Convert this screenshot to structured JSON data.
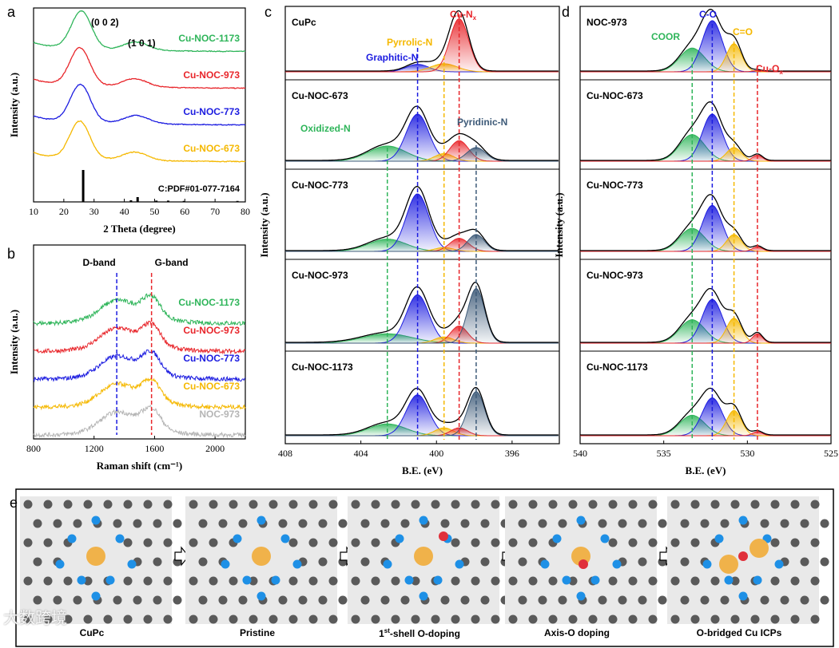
{
  "panel_labels": [
    "a",
    "b",
    "c",
    "d",
    "e"
  ],
  "colors": {
    "green": "#2fb55a",
    "red": "#e8262b",
    "blue": "#1c1ce0",
    "gold": "#f5b800",
    "gray": "#b5b5b5",
    "slate": "#3d5a78",
    "black": "#000000"
  },
  "chart_data": [
    {
      "id": "a",
      "type": "line",
      "xlabel": "2 Theta (degree)",
      "ylabel": "Intensity (a.u.)",
      "xlim": [
        10,
        80
      ],
      "xticks": [
        10,
        20,
        30,
        40,
        50,
        60,
        70,
        80
      ],
      "annotations": [
        "(0 0 2)",
        "(1 0 1)"
      ],
      "reference_label": "C:PDF#01-077-7164",
      "reference_peaks": [
        {
          "x": 26.4,
          "h": 1.0
        },
        {
          "x": 42.2,
          "h": 0.05
        },
        {
          "x": 44.4,
          "h": 0.15
        },
        {
          "x": 50.6,
          "h": 0.04
        },
        {
          "x": 54.5,
          "h": 0.04
        },
        {
          "x": 59.7,
          "h": 0.03
        },
        {
          "x": 77.4,
          "h": 0.03
        }
      ],
      "series": [
        {
          "name": "Cu-NOC-1173",
          "color": "green",
          "offset": 3,
          "peaks": [
            25.8,
            43.8
          ]
        },
        {
          "name": "Cu-NOC-973",
          "color": "red",
          "offset": 2,
          "peaks": [
            25.3,
            43.5
          ]
        },
        {
          "name": "Cu-NOC-773",
          "color": "blue",
          "offset": 1,
          "peaks": [
            25.5,
            44.0
          ]
        },
        {
          "name": "Cu-NOC-673",
          "color": "gold",
          "offset": 0,
          "peaks": [
            25.3,
            43.5
          ]
        }
      ]
    },
    {
      "id": "b",
      "type": "line",
      "xlabel": "Raman shift (cm⁻¹)",
      "ylabel": "Intensity (a.u.)",
      "xlim": [
        800,
        2200
      ],
      "xticks": [
        800,
        1200,
        1600,
        2000
      ],
      "bands": [
        {
          "name": "D-band",
          "x": 1350,
          "color": "blue"
        },
        {
          "name": "G-band",
          "x": 1580,
          "color": "red"
        }
      ],
      "series": [
        {
          "name": "Cu-NOC-1173",
          "color": "green",
          "offset": 4
        },
        {
          "name": "Cu-NOC-973",
          "color": "red",
          "offset": 3
        },
        {
          "name": "Cu-NOC-773",
          "color": "blue",
          "offset": 2
        },
        {
          "name": "Cu-NOC-673",
          "color": "gold",
          "offset": 1
        },
        {
          "name": "NOC-973",
          "color": "gray",
          "offset": 0
        }
      ]
    },
    {
      "id": "c",
      "type": "area",
      "xlabel": "B.E. (eV)",
      "ylabel": "Intensity (a.u.)",
      "xlim": [
        408,
        393.5
      ],
      "xticks": [
        408,
        404,
        400,
        396
      ],
      "components": [
        {
          "name": "Oxidized-N",
          "center": 402.6,
          "color": "green"
        },
        {
          "name": "Graphitic-N",
          "center": 401.0,
          "color": "blue"
        },
        {
          "name": "Pyrrolic-N",
          "center": 399.6,
          "color": "gold"
        },
        {
          "name": "Cu-N",
          "sub": "x",
          "center": 398.8,
          "color": "red"
        },
        {
          "name": "Pyridinic-N",
          "center": 397.9,
          "color": "slate"
        }
      ],
      "samples": [
        {
          "name": "CuPc",
          "amps": [
            0,
            0.12,
            0.13,
            0.85,
            0
          ],
          "sigmas": [
            1,
            0.6,
            0.7,
            0.5,
            0.5
          ]
        },
        {
          "name": "Cu-NOC-673",
          "amps": [
            0.2,
            0.62,
            0.1,
            0.27,
            0.18
          ],
          "sigmas": [
            1,
            0.6,
            0.5,
            0.5,
            0.5
          ]
        },
        {
          "name": "Cu-NOC-773",
          "amps": [
            0.16,
            0.75,
            0.05,
            0.17,
            0.22
          ],
          "sigmas": [
            1,
            0.6,
            0.5,
            0.5,
            0.45
          ]
        },
        {
          "name": "Cu-NOC-973",
          "amps": [
            0.12,
            0.62,
            0.08,
            0.22,
            0.7
          ],
          "sigmas": [
            1.3,
            0.6,
            0.5,
            0.45,
            0.45
          ]
        },
        {
          "name": "Cu-NOC-1173",
          "amps": [
            0.15,
            0.52,
            0.1,
            0.1,
            0.56
          ],
          "sigmas": [
            1.0,
            0.6,
            0.5,
            0.45,
            0.45
          ]
        }
      ]
    },
    {
      "id": "d",
      "type": "area",
      "xlabel": "B.E. (eV)",
      "ylabel": "Intensity (a.u.)",
      "xlim": [
        540,
        525
      ],
      "xticks": [
        540,
        535,
        530,
        525
      ],
      "components": [
        {
          "name": "COOR",
          "center": 533.3,
          "color": "green"
        },
        {
          "name": "C-O",
          "center": 532.1,
          "color": "blue"
        },
        {
          "name": "C=O",
          "center": 530.8,
          "color": "gold"
        },
        {
          "name": "Cu-O",
          "sub": "x",
          "center": 529.4,
          "color": "red"
        }
      ],
      "samples": [
        {
          "name": "NOC-973",
          "amps": [
            0.38,
            0.82,
            0.45,
            0.02
          ],
          "sigmas": [
            0.75,
            0.6,
            0.45,
            0.3
          ]
        },
        {
          "name": "Cu-NOC-673",
          "amps": [
            0.35,
            0.62,
            0.18,
            0.08
          ],
          "sigmas": [
            0.75,
            0.6,
            0.45,
            0.3
          ]
        },
        {
          "name": "Cu-NOC-773",
          "amps": [
            0.3,
            0.6,
            0.22,
            0.06
          ],
          "sigmas": [
            0.75,
            0.6,
            0.45,
            0.3
          ]
        },
        {
          "name": "Cu-NOC-973",
          "amps": [
            0.3,
            0.56,
            0.32,
            0.12
          ],
          "sigmas": [
            0.75,
            0.6,
            0.45,
            0.3
          ]
        },
        {
          "name": "Cu-NOC-1173",
          "amps": [
            0.26,
            0.48,
            0.32,
            0.05
          ],
          "sigmas": [
            0.75,
            0.6,
            0.45,
            0.3
          ]
        }
      ]
    }
  ],
  "panel_e": {
    "steps": [
      {
        "label": "CuPc",
        "cu": 1,
        "o": 0
      },
      {
        "label": "Pristine",
        "cu": 1,
        "o": 0
      },
      {
        "label_sup_base": "1",
        "label_sup": "st",
        "label_rest": "-shell O-doping",
        "cu": 1,
        "o": 1
      },
      {
        "label": "Axis-O doping",
        "cu": 1,
        "o": 1
      },
      {
        "label": "O-bridged Cu ICPs",
        "cu": 2,
        "o": 1
      }
    ]
  },
  "watermark": "大数跨境"
}
